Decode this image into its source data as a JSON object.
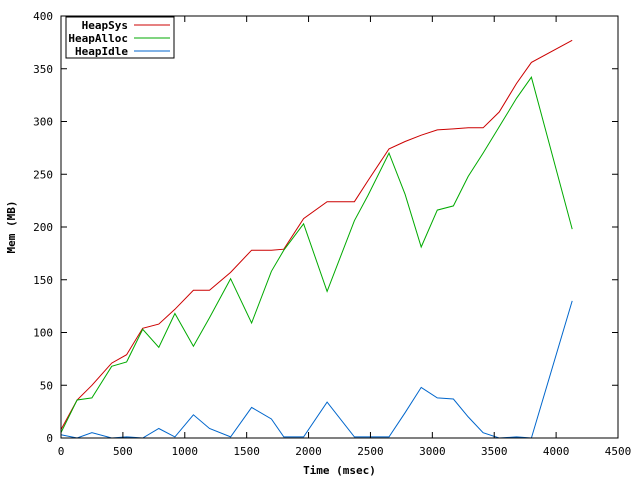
{
  "chart_data": {
    "type": "line",
    "xlabel": "Time (msec)",
    "ylabel": "Mem (MB)",
    "xlim": [
      0,
      4500
    ],
    "ylim": [
      0,
      400
    ],
    "xticks": [
      0,
      500,
      1000,
      1500,
      2000,
      2500,
      3000,
      3500,
      4000,
      4500
    ],
    "yticks": [
      0,
      50,
      100,
      150,
      200,
      250,
      300,
      350,
      400
    ],
    "grid": false,
    "legend_position": "top-left",
    "series": [
      {
        "name": "HeapSys",
        "color": "#cc0000",
        "x": [
          0,
          130,
          250,
          410,
          530,
          660,
          790,
          920,
          1070,
          1200,
          1370,
          1540,
          1700,
          1800,
          1960,
          2150,
          2370,
          2480,
          2650,
          2780,
          2910,
          3040,
          3170,
          3290,
          3410,
          3540,
          3680,
          3800,
          4130
        ],
        "y": [
          8,
          36,
          50,
          71,
          79,
          104,
          108,
          122,
          140,
          140,
          157,
          178,
          178,
          179,
          208,
          224,
          224,
          244,
          274,
          281,
          287,
          292,
          293,
          294,
          294,
          309,
          336,
          356,
          377
        ]
      },
      {
        "name": "HeapAlloc",
        "color": "#00aa00",
        "x": [
          0,
          130,
          250,
          410,
          530,
          660,
          790,
          920,
          1070,
          1200,
          1370,
          1540,
          1700,
          1800,
          1960,
          2150,
          2370,
          2480,
          2650,
          2780,
          2910,
          3040,
          3170,
          3290,
          3410,
          3540,
          3680,
          3800,
          4130
        ],
        "y": [
          5,
          36,
          38,
          68,
          72,
          103,
          86,
          118,
          87,
          114,
          151,
          109,
          158,
          178,
          203,
          139,
          206,
          230,
          270,
          231,
          181,
          216,
          220,
          248,
          270,
          295,
          322,
          342,
          198
        ]
      },
      {
        "name": "HeapIdle",
        "color": "#0066cc",
        "x": [
          0,
          130,
          250,
          410,
          530,
          660,
          790,
          920,
          1070,
          1200,
          1370,
          1540,
          1700,
          1800,
          1960,
          2150,
          2370,
          2480,
          2650,
          2780,
          2910,
          3040,
          3170,
          3290,
          3410,
          3540,
          3680,
          3800,
          4130
        ],
        "y": [
          3,
          0,
          5,
          0,
          1,
          0,
          9,
          1,
          22,
          9,
          1,
          29,
          18,
          1,
          1,
          34,
          1,
          1,
          1,
          24,
          48,
          38,
          37,
          20,
          5,
          0,
          1,
          0,
          130
        ]
      }
    ]
  }
}
